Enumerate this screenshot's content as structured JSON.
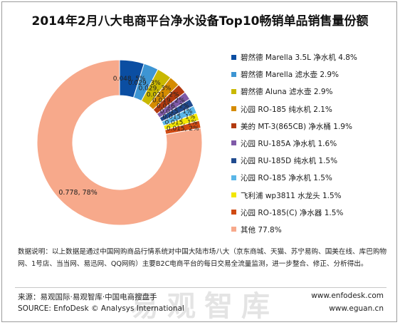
{
  "chart_data": {
    "type": "pie",
    "style": "donut",
    "title": "2014年2月八大电商平台净水设备Top10畅销单品销售量份额",
    "series": [
      {
        "name": "碧然德 Marella 3.5L 净水机",
        "value": 0.048,
        "data_label": "0.048, 5%",
        "color": "#0b4ea2",
        "legend": "碧然德 Marella 3.5L 净水机 4.8%"
      },
      {
        "name": "碧然德 Marella 滤水壶",
        "value": 0.029,
        "data_label": "0.029, 3%",
        "color": "#3d95d3",
        "legend": "碧然德 Marella 滤水壶 2.9%"
      },
      {
        "name": "碧然德 Aluna 滤水壶",
        "value": 0.029,
        "data_label": "0.029, 3%",
        "color": "#c9b800",
        "legend": "碧然德 Aluna 滤水壶 2.9%"
      },
      {
        "name": "沁园 RO-185 纯水机",
        "value": 0.021,
        "data_label": "0.021, 2%",
        "color": "#d58b00",
        "legend": "沁园 RO-185 纯水机 2.1%"
      },
      {
        "name": "美的 MT-3(865CB) 净水桶",
        "value": 0.019,
        "data_label": "0.019, 2%",
        "color": "#b23a0e",
        "legend": "美的 MT-3(865CB) 净水桶 1.9%"
      },
      {
        "name": "沁园 RU-185A 净水机",
        "value": 0.016,
        "data_label": "0.016, 2%",
        "color": "#7f5aa8",
        "legend": "沁园 RU-185A 净水机 1.6%"
      },
      {
        "name": "沁园 RU-185D 纯水机",
        "value": 0.015,
        "data_label": "0.015, 1%",
        "color": "#214b8f",
        "legend": "沁园 RU-185D 纯水机 1.5%"
      },
      {
        "name": "沁园 RO-185 净水机",
        "value": 0.015,
        "data_label": "0.015, 1%",
        "color": "#5ab6e8",
        "legend": "沁园 RO-185 净水机  1.5%"
      },
      {
        "name": "飞利浦 wp3811 水龙头",
        "value": 0.015,
        "data_label": "0.015, 1%",
        "color": "#f2e600",
        "legend": "飞利浦 wp3811 水龙头 1.5%"
      },
      {
        "name": "沁园 RO-185(C) 净水器",
        "value": 0.015,
        "data_label": "0.015, 2%",
        "color": "#cf4a12",
        "legend": "沁园 RO-185(C) 净水器 1.5%"
      },
      {
        "name": "其他",
        "value": 0.778,
        "data_label": "0.778, 78%",
        "color": "#f7a98b",
        "legend": "其他 77.8%"
      }
    ],
    "legend_position": "right"
  },
  "note": "数据说明：以上数据是通过中国网购商品行情系统对中国大陆市场八大（京东商城、天猫、苏宁易购、国美在线、库巴购物网、1号店、当当网、易迅网、QQ网购）主要B2C电商平台的每日交易全流量监测，进一步整合、修正、分析得出。",
  "source_cn": "来源：易观国际·易观智库·中国电商搜盘手",
  "source_en": "SOURCE: EnfoDesk © Analysys International",
  "url1": "www.enfodesk.com",
  "url2": "www.eguan.cn",
  "watermark": "易观智库"
}
